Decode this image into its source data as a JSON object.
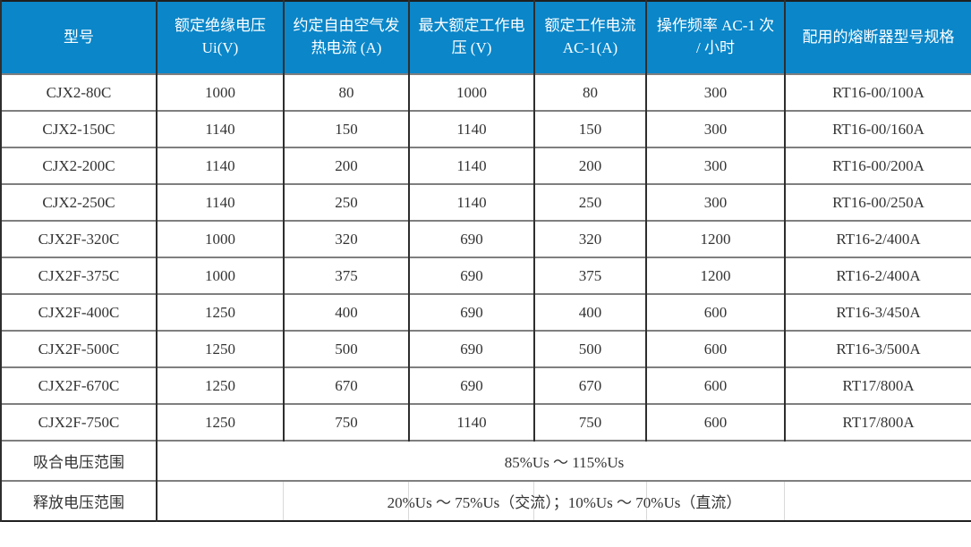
{
  "table": {
    "headers": [
      "型号",
      "额定绝缘电压 Ui(V)",
      "约定自由空气发热电流 (A)",
      "最大额定工作电压 (V)",
      "额定工作电流 AC-1(A)",
      "操作频率 AC-1 次 / 小时",
      "配用的熔断器型号规格"
    ],
    "rows": [
      [
        "CJX2-80C",
        "1000",
        "80",
        "1000",
        "80",
        "300",
        "RT16-00/100A"
      ],
      [
        "CJX2-150C",
        "1140",
        "150",
        "1140",
        "150",
        "300",
        "RT16-00/160A"
      ],
      [
        "CJX2-200C",
        "1140",
        "200",
        "1140",
        "200",
        "300",
        "RT16-00/200A"
      ],
      [
        "CJX2-250C",
        "1140",
        "250",
        "1140",
        "250",
        "300",
        "RT16-00/250A"
      ],
      [
        "CJX2F-320C",
        "1000",
        "320",
        "690",
        "320",
        "1200",
        "RT16-2/400A"
      ],
      [
        "CJX2F-375C",
        "1000",
        "375",
        "690",
        "375",
        "1200",
        "RT16-2/400A"
      ],
      [
        "CJX2F-400C",
        "1250",
        "400",
        "690",
        "400",
        "600",
        "RT16-3/450A"
      ],
      [
        "CJX2F-500C",
        "1250",
        "500",
        "690",
        "500",
        "600",
        "RT16-3/500A"
      ],
      [
        "CJX2F-670C",
        "1250",
        "670",
        "690",
        "670",
        "600",
        "RT17/800A"
      ],
      [
        "CJX2F-750C",
        "1250",
        "750",
        "1140",
        "750",
        "600",
        "RT17/800A"
      ]
    ],
    "footer_rows": [
      {
        "label": "吸合电压范围",
        "value": "85%Us ～ 115%Us"
      },
      {
        "label": "释放电压范围",
        "value": "20%Us ～ 75%Us（交流）；10%Us ～ 70%Us（直流）"
      }
    ],
    "colors": {
      "header_bg": "#0a86c9",
      "header_text": "#ffffff",
      "body_text": "#333333",
      "border_outer": "#1f1f1f",
      "border_vertical": "#2e2e2e",
      "border_horizontal": "#7f7f7f",
      "faint_divider": "#d9d9d9"
    }
  }
}
